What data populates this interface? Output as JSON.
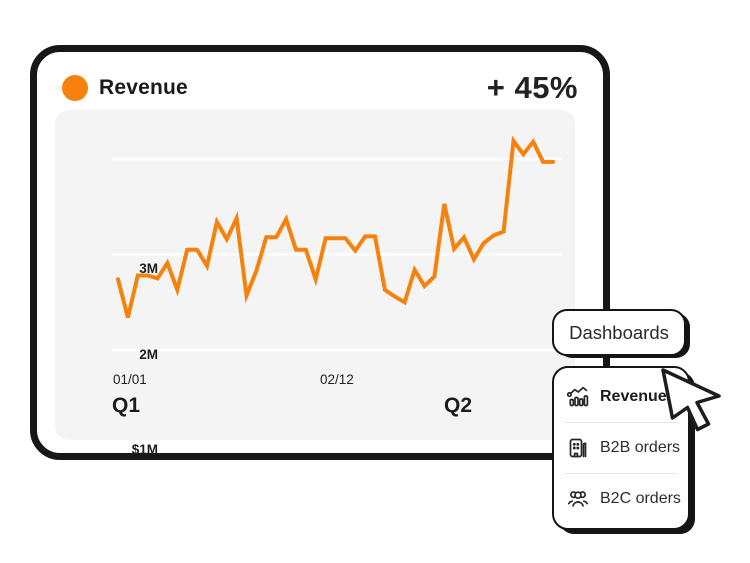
{
  "header": {
    "title": "Revenue",
    "delta": "+ 45%",
    "accent_color": "#F6820D"
  },
  "chart_data": {
    "type": "line",
    "title": "Revenue",
    "unit": "millions USD",
    "grid": "horizontal",
    "legend": "none",
    "ylim": [
      1.1,
      3.35
    ],
    "y_axis": {
      "tick_labels": [
        "3M",
        "2M",
        "$1M"
      ],
      "tick_values": [
        3,
        2,
        1
      ]
    },
    "x_axis": {
      "tick_labels": [
        "01/01",
        "02/12"
      ],
      "group_labels": [
        "Q1",
        "Q2"
      ]
    },
    "series": [
      {
        "name": "Revenue",
        "color": "#F6820D",
        "values": [
          1.74,
          1.34,
          1.78,
          1.78,
          1.75,
          1.91,
          1.63,
          2.05,
          2.05,
          1.88,
          2.34,
          2.16,
          2.38,
          1.57,
          1.83,
          2.18,
          2.18,
          2.37,
          2.05,
          2.05,
          1.74,
          2.17,
          2.17,
          2.17,
          2.04,
          2.19,
          2.19,
          1.63,
          1.56,
          1.5,
          1.84,
          1.67,
          1.77,
          2.53,
          2.06,
          2.18,
          1.95,
          2.12,
          2.2,
          2.24,
          3.19,
          3.05,
          3.18,
          2.97,
          2.97
        ]
      }
    ]
  },
  "dropdown": {
    "trigger_label": "Dashboards",
    "items": [
      {
        "label": "Revenue",
        "icon": "bar-chart-trend-icon",
        "active": true
      },
      {
        "label": "B2B orders",
        "icon": "building-icon",
        "active": false
      },
      {
        "label": "B2C orders",
        "icon": "people-group-icon",
        "active": false
      }
    ]
  },
  "cursor": {
    "type": "arrow-pointer"
  },
  "colors": {
    "accent": "#F6820D",
    "panel_bg": "#F4F4F4",
    "outline": "#151515",
    "gridline": "#FFFFFF"
  }
}
